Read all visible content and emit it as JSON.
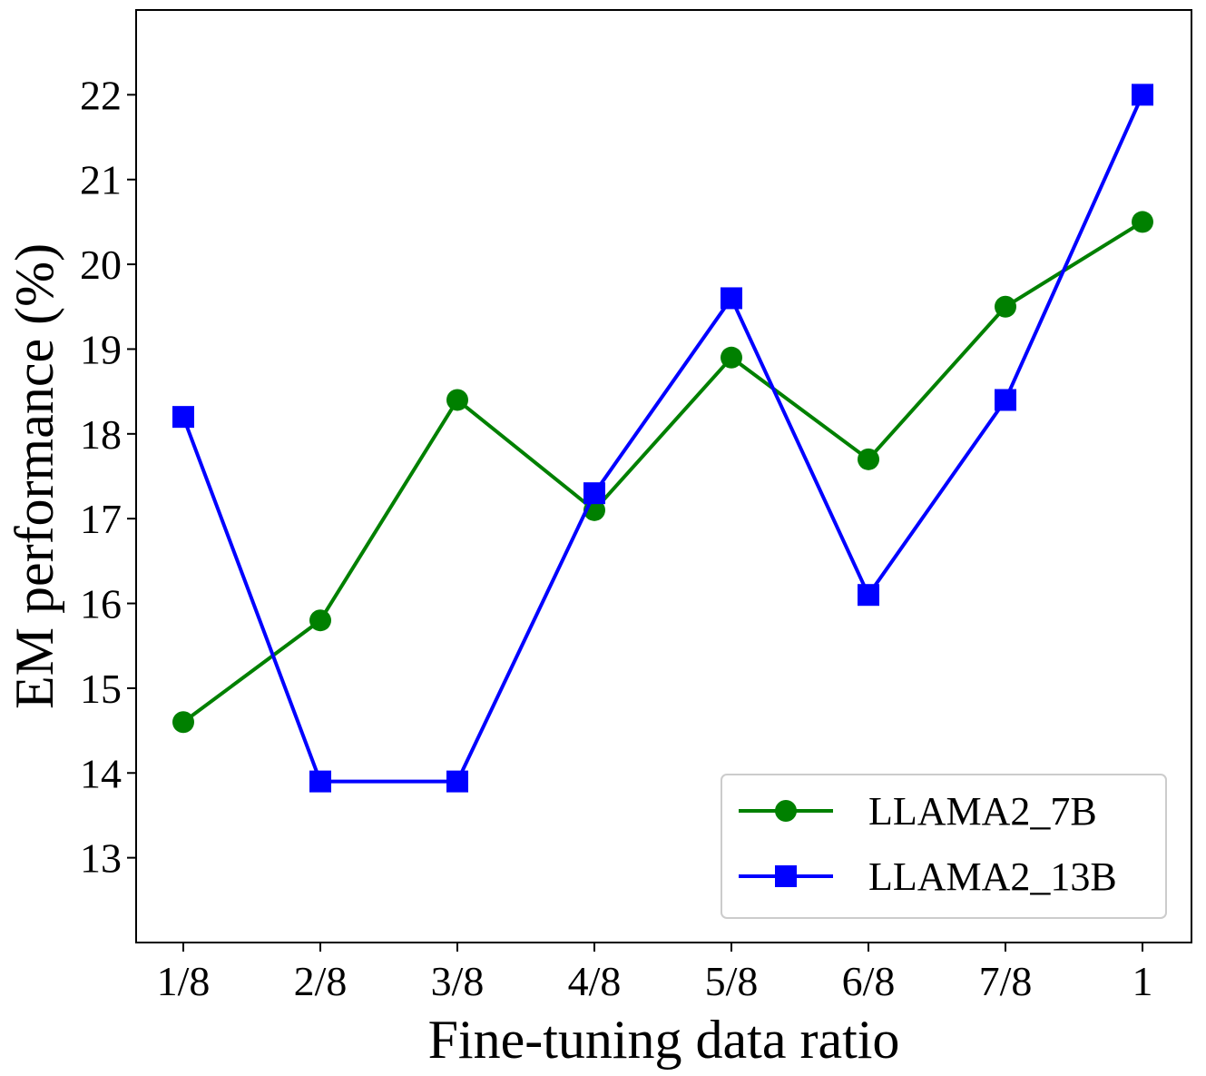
{
  "chart_data": {
    "type": "line",
    "title": "",
    "xlabel": "Fine-tuning data ratio",
    "ylabel": "EM performance (%)",
    "categories": [
      "1/8",
      "2/8",
      "3/8",
      "4/8",
      "5/8",
      "6/8",
      "7/8",
      "1"
    ],
    "ylim": [
      12,
      23
    ],
    "yticks": [
      13,
      14,
      15,
      16,
      17,
      18,
      19,
      20,
      21,
      22
    ],
    "grid": false,
    "legend_position": "lower-right",
    "series": [
      {
        "name": "LLAMA2_7B",
        "legend_label": "LLAMA2_7B",
        "color": "#008000",
        "marker": "circle",
        "values": [
          14.6,
          15.8,
          18.4,
          17.1,
          18.9,
          17.7,
          19.5,
          20.5
        ]
      },
      {
        "name": "LLAMA2_13B",
        "legend_label": "LLAMA2_13B",
        "color": "#0000ff",
        "marker": "square",
        "values": [
          18.2,
          13.9,
          13.9,
          17.3,
          19.6,
          16.1,
          18.4,
          22.0
        ]
      }
    ]
  }
}
